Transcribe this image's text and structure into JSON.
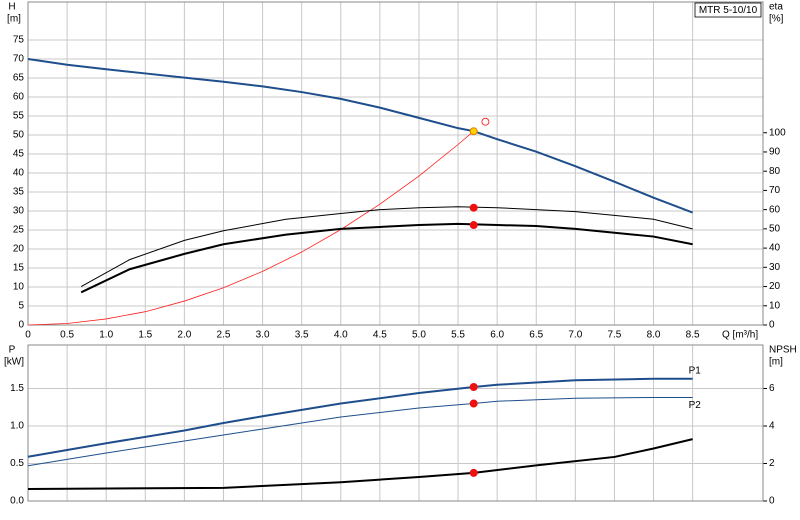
{
  "chart_data": [
    {
      "type": "line",
      "title": "MTR 5-10/10",
      "y_label": "H",
      "y_unit": "[m]",
      "y2_label": "eta",
      "y2_unit": "[%]",
      "x_label": "Q [m³/h]",
      "xlim": [
        0,
        9.4
      ],
      "xticks": [
        0,
        0.5,
        {
          "value": 1,
          "label": "1.0"
        },
        1.5,
        {
          "value": 2,
          "label": "2.0"
        },
        2.5,
        {
          "value": 3,
          "label": "3.0"
        },
        3.5,
        {
          "value": 4,
          "label": "4.0"
        },
        4.5,
        {
          "value": 5,
          "label": "5.0"
        },
        5.5,
        {
          "value": 6,
          "label": "6.0"
        },
        6.5,
        {
          "value": 7,
          "label": "7.0"
        },
        7.5,
        {
          "value": 8,
          "label": "8.0"
        },
        8.5
      ],
      "ylim": [
        0,
        85
      ],
      "yticks": [
        0,
        5,
        10,
        15,
        20,
        25,
        30,
        35,
        40,
        45,
        50,
        55,
        60,
        65,
        70,
        75
      ],
      "y2lim": [
        0,
        168
      ],
      "y2ticks": [
        0,
        10,
        20,
        30,
        40,
        50,
        60,
        70,
        80,
        90,
        100
      ],
      "grid": true,
      "series": [
        {
          "style": "line",
          "color": "#1f4e8c",
          "line_width": 2,
          "axis": "y",
          "x": [
            0,
            0.5,
            1,
            1.5,
            2,
            2.5,
            3,
            3.5,
            4,
            4.5,
            5,
            5.5,
            5.7,
            6,
            6.5,
            7,
            7.5,
            8,
            8.5
          ],
          "values": [
            70,
            68.5,
            67.3,
            66.2,
            65.1,
            64,
            62.8,
            61.3,
            59.5,
            57.2,
            54.5,
            51.8,
            51,
            48.9,
            45.6,
            41.8,
            37.7,
            33.5,
            29.6
          ]
        },
        {
          "style": "line",
          "color": "#ff2020",
          "line_width": 0.8,
          "axis": "y",
          "x": [
            0,
            0.5,
            1,
            1.5,
            2,
            2.5,
            3,
            3.5,
            4,
            4.5,
            5,
            5.5,
            5.7
          ],
          "values": [
            0,
            0.4,
            1.6,
            3.5,
            6.3,
            9.8,
            14.1,
            19.2,
            25.1,
            31.8,
            39.2,
            47.5,
            51
          ]
        },
        {
          "style": "line",
          "color": "#000000",
          "line_width": 1,
          "axis": "y2",
          "x": [
            0.68,
            1.3,
            2,
            2.5,
            3.3,
            4,
            4.5,
            5,
            5.5,
            6,
            6.5,
            7,
            7.5,
            8,
            8.5
          ],
          "values": [
            20,
            34,
            44,
            49,
            55,
            58,
            60,
            61,
            61.5,
            61,
            60,
            59,
            57,
            55,
            50
          ]
        },
        {
          "style": "line",
          "color": "#000000",
          "line_width": 2,
          "axis": "y2",
          "x": [
            0.68,
            1.3,
            2,
            2.5,
            3.3,
            4,
            4.5,
            5,
            5.5,
            6,
            6.5,
            7,
            7.5,
            8,
            8.5
          ],
          "values": [
            17,
            29,
            37,
            42,
            47,
            50,
            51,
            52,
            52.6,
            52,
            51.5,
            50,
            48,
            46,
            42
          ]
        },
        {
          "style": "dot",
          "color": "#ee1111",
          "axis": "y2",
          "x": [
            5.7,
            5.7
          ],
          "values": [
            61,
            52
          ]
        },
        {
          "style": "dot",
          "color": "#ffd000",
          "axis": "y",
          "x": [
            5.7
          ],
          "values": [
            51
          ]
        },
        {
          "style": "ring",
          "color": "#ff3030",
          "axis": "y",
          "x": [
            5.85
          ],
          "values": [
            53.5
          ]
        }
      ]
    },
    {
      "type": "line",
      "y_label": "P",
      "y_unit": "[kW]",
      "y2_label": "NPSH",
      "y2_unit": "[m]",
      "xlim": [
        0,
        9.4
      ],
      "ylim": [
        0,
        2.08
      ],
      "yticks": [
        {
          "value": 0,
          "label": "0.0"
        },
        0.5,
        {
          "value": 1,
          "label": "1.0"
        },
        1.5
      ],
      "y2lim": [
        0,
        8.32
      ],
      "y2ticks": [
        0,
        2,
        4,
        6
      ],
      "grid": true,
      "series": [
        {
          "name": "P1",
          "style": "line",
          "color": "#1f4e8c",
          "line_width": 2,
          "axis": "y",
          "x": [
            0,
            1,
            2,
            2.5,
            3,
            4,
            5,
            5.7,
            6,
            7,
            8,
            8.5
          ],
          "values": [
            0.59,
            0.77,
            0.94,
            1.04,
            1.13,
            1.3,
            1.44,
            1.52,
            1.55,
            1.61,
            1.63,
            1.63
          ]
        },
        {
          "name": "P2",
          "style": "line",
          "color": "#1f4e8c",
          "line_width": 1,
          "axis": "y",
          "x": [
            0,
            1,
            2,
            2.5,
            3,
            4,
            5,
            5.7,
            6,
            7,
            8,
            8.5
          ],
          "values": [
            0.47,
            0.64,
            0.8,
            0.88,
            0.96,
            1.12,
            1.24,
            1.3,
            1.33,
            1.37,
            1.38,
            1.38
          ]
        },
        {
          "style": "line",
          "color": "#000000",
          "line_width": 2,
          "axis": "y2",
          "x": [
            0,
            2.5,
            4,
            5,
            5.7,
            6.5,
            7.5,
            8,
            8.5
          ],
          "values": [
            0.64,
            0.7,
            1,
            1.28,
            1.5,
            1.9,
            2.35,
            2.8,
            3.3
          ]
        },
        {
          "style": "dot",
          "color": "#ee1111",
          "axis": "y",
          "x": [
            5.7,
            5.7
          ],
          "values": [
            1.52,
            1.3
          ]
        },
        {
          "style": "dot",
          "color": "#ee1111",
          "axis": "y2",
          "x": [
            5.7
          ],
          "values": [
            1.5
          ]
        }
      ]
    }
  ]
}
